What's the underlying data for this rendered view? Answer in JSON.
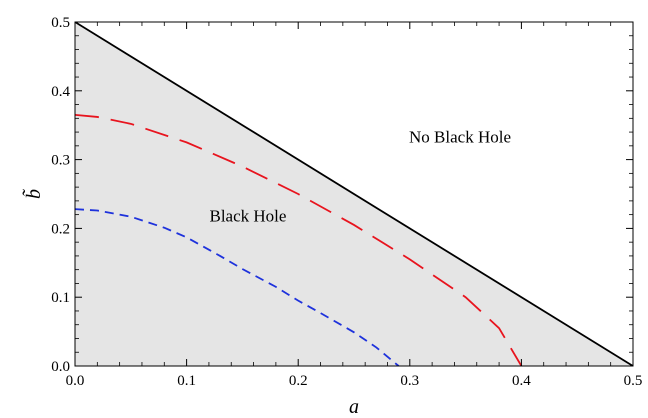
{
  "chart_data": {
    "type": "line",
    "xlabel": "a",
    "ylabel": "b̃",
    "xlim": [
      0,
      0.5
    ],
    "ylim": [
      0,
      0.5
    ],
    "x_ticks": [
      "0.0",
      "0.1",
      "0.2",
      "0.3",
      "0.4",
      "0.5"
    ],
    "y_ticks": [
      "0.0",
      "0.1",
      "0.2",
      "0.3",
      "0.4",
      "0.5"
    ],
    "grid": false,
    "shaded_region": {
      "below_series": "boundary",
      "color": "#e5e5e5"
    },
    "annotations": [
      {
        "text": "No Black Hole",
        "x": 0.345,
        "y": 0.325
      },
      {
        "text": "Black Hole",
        "x": 0.155,
        "y": 0.21
      }
    ],
    "series": [
      {
        "id": "boundary",
        "style": "solid",
        "color": "#000000",
        "x": [
          0.0,
          0.5
        ],
        "y": [
          0.5,
          0.0
        ]
      },
      {
        "id": "red-dashed",
        "style": "long-dash",
        "color": "#e8141e",
        "x": [
          0.0,
          0.02,
          0.05,
          0.1,
          0.15,
          0.2,
          0.25,
          0.3,
          0.35,
          0.38,
          0.4
        ],
        "y": [
          0.365,
          0.362,
          0.352,
          0.325,
          0.29,
          0.25,
          0.205,
          0.155,
          0.1,
          0.055,
          0.0
        ]
      },
      {
        "id": "blue-dashed",
        "style": "short-dash",
        "color": "#1e32dc",
        "x": [
          0.0,
          0.02,
          0.05,
          0.08,
          0.1,
          0.13,
          0.15,
          0.18,
          0.2,
          0.22,
          0.25,
          0.27,
          0.29
        ],
        "y": [
          0.228,
          0.226,
          0.217,
          0.201,
          0.187,
          0.16,
          0.141,
          0.115,
          0.095,
          0.077,
          0.049,
          0.027,
          0.0
        ]
      }
    ]
  }
}
